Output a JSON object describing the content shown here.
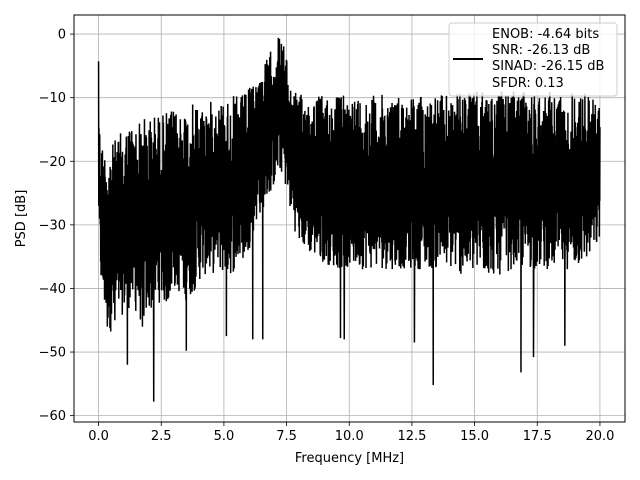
{
  "chart_data": {
    "type": "line",
    "title": "",
    "xlabel": "Frequency [MHz]",
    "ylabel": "PSD [dB]",
    "xlim": [
      -0.98,
      21.0
    ],
    "ylim": [
      -61.0,
      3.0
    ],
    "xticks": [
      0.0,
      2.5,
      5.0,
      7.5,
      10.0,
      12.5,
      15.0,
      17.5,
      20.0
    ],
    "xtick_labels": [
      "0.0",
      "2.5",
      "5.0",
      "7.5",
      "10.0",
      "12.5",
      "15.0",
      "17.5",
      "20.0"
    ],
    "yticks": [
      0,
      -10,
      -20,
      -30,
      -40,
      -50,
      -60
    ],
    "ytick_labels": [
      "0",
      "−10",
      "−20",
      "−30",
      "−40",
      "−50",
      "−60"
    ],
    "grid": true,
    "legend_position": "top-right",
    "legend_lines": [
      "ENOB: -4.64 bits",
      "SNR: -26.13 dB",
      "SINAD: -26.15 dB",
      "SFDR: 0.13"
    ],
    "line_color": "#000000",
    "series": [
      {
        "x": [
          0.0,
          0.02,
          0.05,
          0.1,
          0.2,
          0.3,
          0.5,
          0.75,
          1.0,
          1.25,
          1.5,
          1.75,
          2.0,
          2.25,
          2.5,
          2.75,
          3.0,
          3.25,
          3.5,
          3.75,
          4.0,
          4.25,
          4.5,
          4.75,
          5.0,
          5.25,
          5.5,
          5.75,
          6.0,
          6.25,
          6.5,
          6.75,
          7.0,
          7.1,
          7.2,
          7.3,
          7.4,
          7.5,
          7.75,
          8.0,
          8.5,
          9.0,
          9.5,
          10.0,
          10.5,
          11.0,
          11.5,
          12.0,
          12.5,
          13.0,
          13.5,
          14.0,
          14.5,
          15.0,
          15.5,
          16.0,
          16.5,
          17.0,
          17.5,
          18.0,
          18.5,
          19.0,
          19.5,
          20.0
        ],
        "upper": [
          -4.3,
          -10,
          -14.5,
          -16,
          -18,
          -18,
          -17.5,
          -16,
          -15,
          -14,
          -14,
          -13,
          -13,
          -12.5,
          -12.5,
          -12,
          -12,
          -11.5,
          -11.5,
          -11,
          -11,
          -11,
          -10.5,
          -10.5,
          -10,
          -10,
          -9.5,
          -9.5,
          -8.5,
          -7,
          -5.5,
          -3.5,
          -1.5,
          -0.5,
          0,
          -0.5,
          -1.5,
          -4,
          -8.5,
          -9.5,
          -9.5,
          -9.5,
          -9.5,
          -9.5,
          -9.5,
          -9.5,
          -9.5,
          -9.5,
          -9.5,
          -9.5,
          -9.5,
          -9.5,
          -9,
          -9,
          -9,
          -9,
          -9,
          -9,
          -9,
          -9,
          -9,
          -9,
          -9,
          -11
        ],
        "lower": [
          -20,
          -33,
          -38,
          -40,
          -43,
          -45,
          -47,
          -45,
          -44,
          -43,
          -44,
          -46,
          -44,
          -43,
          -42,
          -43,
          -40,
          -41,
          -42,
          -41,
          -39,
          -38,
          -38,
          -37,
          -38,
          -38,
          -37,
          -36,
          -34,
          -30,
          -28,
          -26,
          -24,
          -23,
          -22,
          -22,
          -23,
          -25,
          -30,
          -33,
          -35,
          -36,
          -37,
          -37,
          -37,
          -37,
          -37,
          -37,
          -37,
          -37,
          -37,
          -37,
          -38,
          -38,
          -38,
          -38,
          -37,
          -37,
          -37,
          -37,
          -37,
          -37,
          -36,
          -33
        ],
        "spikes": [
          {
            "x": 0.35,
            "y": -46
          },
          {
            "x": 0.65,
            "y": -45
          },
          {
            "x": 1.15,
            "y": -52
          },
          {
            "x": 1.75,
            "y": -46
          },
          {
            "x": 2.2,
            "y": -57.8
          },
          {
            "x": 3.5,
            "y": -49.8
          },
          {
            "x": 5.1,
            "y": -47.5
          },
          {
            "x": 6.15,
            "y": -48
          },
          {
            "x": 6.55,
            "y": -48
          },
          {
            "x": 9.65,
            "y": -47.8
          },
          {
            "x": 9.8,
            "y": -48
          },
          {
            "x": 12.6,
            "y": -48.5
          },
          {
            "x": 13.35,
            "y": -55.2
          },
          {
            "x": 16.85,
            "y": -53.2
          },
          {
            "x": 17.35,
            "y": -50.8
          },
          {
            "x": 18.6,
            "y": -49
          }
        ]
      }
    ]
  }
}
